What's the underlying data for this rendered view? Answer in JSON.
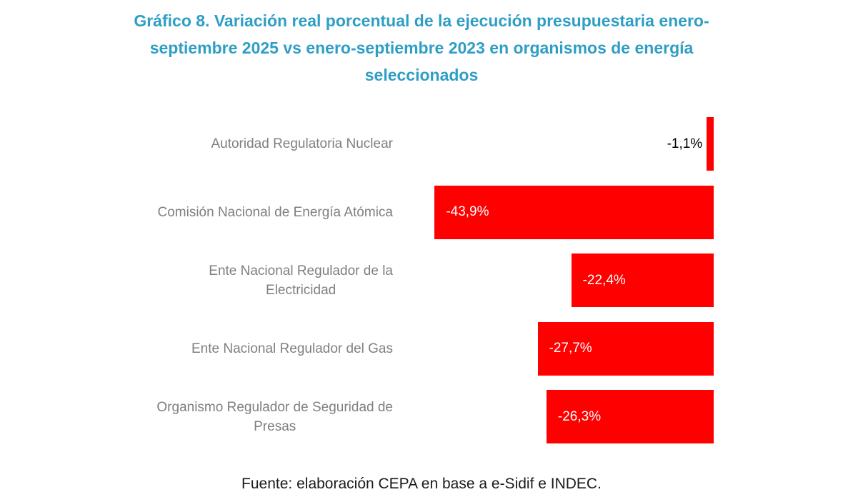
{
  "chart": {
    "title": "Gráfico 8. Variación real porcentual de la ejecución presupuestaria enero-\nseptiembre 2025 vs enero-septiembre 2023 en organismos de energía\nseleccionados",
    "source": "Fuente: elaboración CEPA en base a e-Sidif e INDEC."
  },
  "chart_data": {
    "type": "bar",
    "orientation": "horizontal",
    "title": "Gráfico 8. Variación real porcentual de la ejecución presupuestaria enero-septiembre 2025 vs enero-septiembre 2023 en organismos de energía seleccionados",
    "categories": [
      "Autoridad Regulatoria Nuclear",
      "Comisión Nacional de Energía Atómica",
      "Ente Nacional Regulador de la Electricidad",
      "Ente Nacional Regulador del Gas",
      "Organismo Regulador de Seguridad de Presas"
    ],
    "categories_display": [
      "Autoridad Regulatoria Nuclear",
      "Comisión Nacional de Energía Atómica",
      "Ente Nacional Regulador de la\nElectricidad",
      "Ente Nacional Regulador del Gas",
      "Organismo Regulador de Seguridad de\nPresas"
    ],
    "values": [
      -1.1,
      -43.9,
      -22.4,
      -27.7,
      -26.3
    ],
    "value_labels": [
      "-1,1%",
      "-43,9%",
      "-22,4%",
      "-27,7%",
      "-26,3%"
    ],
    "xlabel": "",
    "ylabel": "",
    "xlim": [
      -50,
      0
    ],
    "grid": false,
    "legend": false,
    "colors": {
      "bar": "#FF0000",
      "title": "#2E9EC5",
      "category_label": "#7F7F7F",
      "value_label_inside": "#FFFFFF",
      "value_label_outside": "#000000",
      "source_text": "#1A1A1A",
      "background": "#FFFFFF"
    }
  }
}
